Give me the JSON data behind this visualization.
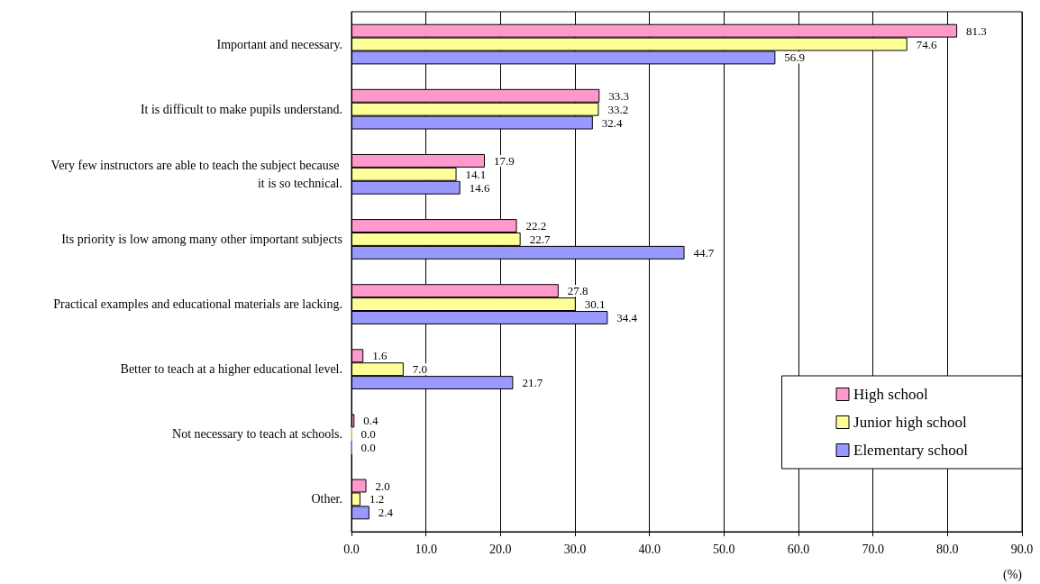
{
  "chart_data": {
    "type": "bar",
    "orientation": "horizontal",
    "xlabel": "(%)",
    "categories": [
      "Important and necessary.",
      "It is difficult to make pupils understand.",
      "Very few instructors are able to teach the subject because it is so technical.",
      "Its priority is low among many other important subjects",
      "Practical examples and educational materials are lacking.",
      "Better to teach at a higher educational level.",
      "Not necessary to teach at schools.",
      "Other."
    ],
    "series": [
      {
        "name": "High school",
        "color": "#ff99cc",
        "values": [
          81.3,
          33.3,
          17.9,
          22.2,
          27.8,
          1.6,
          0.4,
          2.0
        ],
        "value_labels": [
          "81.3",
          "33.3",
          "17.9",
          "22.2",
          "27.8",
          "1.6",
          "0.4",
          "2.0"
        ]
      },
      {
        "name": "Junior high school",
        "color": "#ffff99",
        "values": [
          74.6,
          33.2,
          14.1,
          22.7,
          30.1,
          7.0,
          0.0,
          1.2
        ],
        "value_labels": [
          "74.6",
          "33.2",
          "14.1",
          "22.7",
          "30.1",
          "7.0",
          "0.0",
          "1.2"
        ]
      },
      {
        "name": "Elementary school",
        "color": "#9999ff",
        "values": [
          56.9,
          32.4,
          14.6,
          44.7,
          34.4,
          21.7,
          0.0,
          2.4
        ],
        "value_labels": [
          "56.9",
          "32.4",
          "14.6",
          "44.7",
          "34.4",
          "21.7",
          "0.0",
          "2.4"
        ]
      }
    ],
    "xlim": [
      0,
      90
    ],
    "xticks": [
      {
        "value": 0,
        "label": "0.0"
      },
      {
        "value": 10,
        "label": "10.0"
      },
      {
        "value": 20,
        "label": "20.0"
      },
      {
        "value": 30,
        "label": "30.0"
      },
      {
        "value": 40,
        "label": "40.0"
      },
      {
        "value": 50,
        "label": "50.0"
      },
      {
        "value": 60,
        "label": "60.0"
      },
      {
        "value": 70,
        "label": "70.0"
      },
      {
        "value": 80,
        "label": "80.0"
      },
      {
        "value": 90,
        "label": "90.0"
      }
    ],
    "grid": "x",
    "legend": "bottom right"
  }
}
